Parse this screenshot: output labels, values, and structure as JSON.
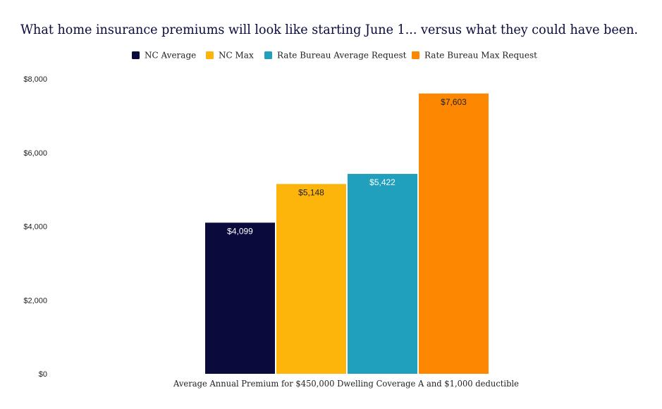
{
  "chart_data": {
    "type": "bar",
    "title": "What home insurance premiums will look like starting June 1... versus what they could have been.",
    "categories": [
      "Average Annual Premium for $450,000 Dwelling Coverage A and $1,000 deductible"
    ],
    "xlabel": "Average Annual Premium for $450,000 Dwelling Coverage A and $1,000 deductible",
    "ylabel": "",
    "ylim": [
      0,
      8000
    ],
    "yticks": [
      0,
      2000,
      4000,
      6000,
      8000
    ],
    "ytick_labels": [
      "$0",
      "$2,000",
      "$4,000",
      "$6,000",
      "$8,000"
    ],
    "grid": false,
    "legend_position": "top",
    "series": [
      {
        "name": "NC Average",
        "values": [
          4099
        ],
        "label": "$4,099",
        "color": "#0a0a3c",
        "label_color": "#ffffff"
      },
      {
        "name": "NC Max",
        "values": [
          5148
        ],
        "label": "$5,148",
        "color": "#fdb50b",
        "label_color": "#222222"
      },
      {
        "name": "Rate Bureau Average Request",
        "values": [
          5422
        ],
        "label": "$5,422",
        "color": "#21a0be",
        "label_color": "#ffffff"
      },
      {
        "name": "Rate Bureau Max Request",
        "values": [
          7603
        ],
        "label": "$7,603",
        "color": "#fd8700",
        "label_color": "#222222"
      }
    ]
  }
}
